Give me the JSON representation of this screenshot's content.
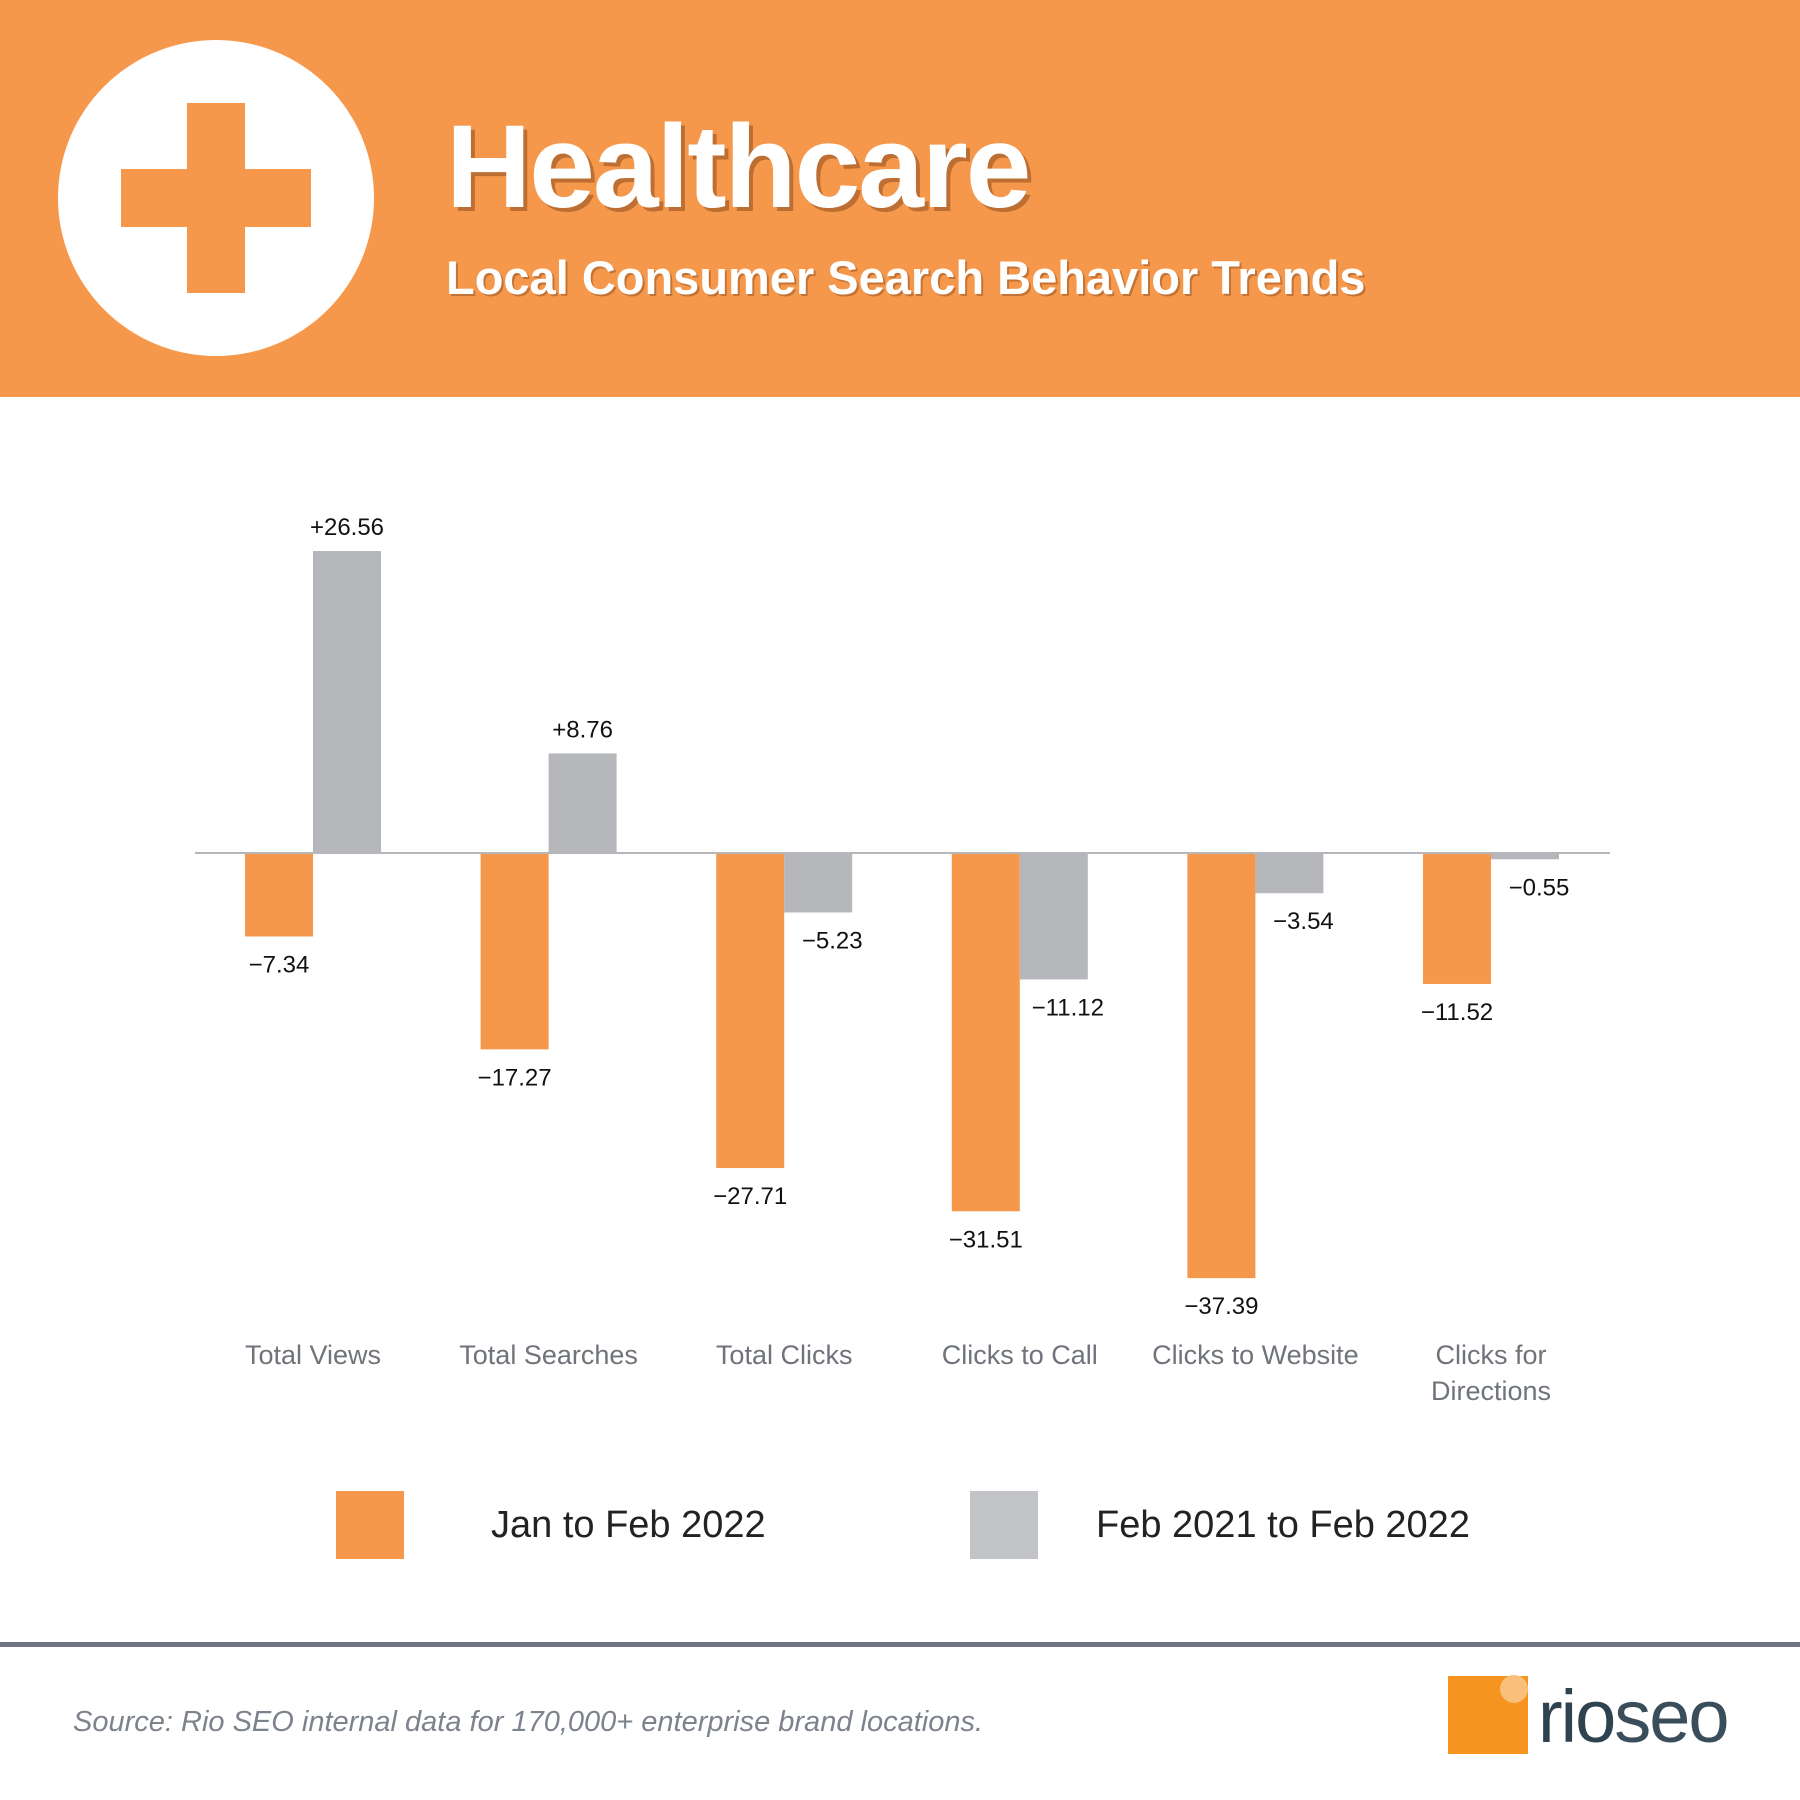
{
  "header": {
    "title": "Healthcare",
    "subtitle": "Local Consumer Search Behavior Trends",
    "icon": "plus-icon"
  },
  "colors": {
    "orange": "#f6984b",
    "gray": "#b6b7bb",
    "axis": "#b6b7bb",
    "category_text": "#6f737a"
  },
  "chart_data": {
    "type": "bar",
    "title": "Healthcare",
    "categories": [
      "Total Views",
      "Total Searches",
      "Total Clicks",
      "Clicks to Call",
      "Clicks to Website",
      "Clicks for Directions"
    ],
    "series": [
      {
        "name": "Jan to Feb 2022",
        "color": "#f6984b",
        "values": [
          -7.34,
          -17.27,
          -27.71,
          -31.51,
          -37.39,
          -11.52
        ],
        "labels": [
          "−7.34",
          "−17.27",
          "−27.71",
          "−31.51",
          "−37.39",
          "−11.52"
        ]
      },
      {
        "name": "Feb 2021 to Feb 2022",
        "color": "#b6b7bb",
        "values": [
          26.56,
          8.76,
          -5.23,
          -11.12,
          -3.54,
          -0.55
        ],
        "labels": [
          "+26.56",
          "+8.76",
          "−5.23",
          "−11.12",
          "−3.54",
          "−0.55"
        ]
      }
    ],
    "ylim": [
      -40,
      30
    ],
    "grid": false,
    "legend": "bottom"
  },
  "legend": {
    "item1": "Jan to Feb 2022",
    "item2": "Feb 2021 to Feb 2022"
  },
  "footer": {
    "source": "Source: Rio SEO internal data for 170,000+ enterprise brand locations.",
    "logo_rio": "rio",
    "logo_seo": "seo"
  }
}
